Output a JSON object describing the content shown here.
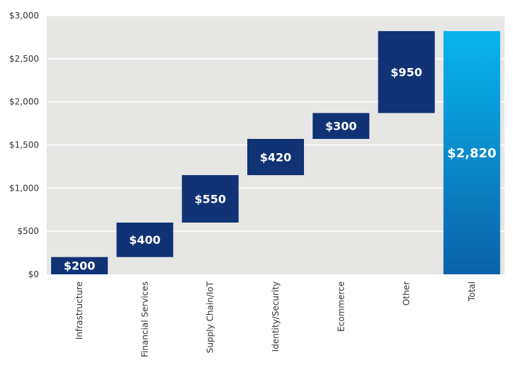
{
  "chart_data": {
    "type": "bar",
    "subtype": "waterfall",
    "categories": [
      "Infrastructure",
      "Financial Services",
      "Supply Chain/IoT",
      "Identity/Security",
      "Ecommerce",
      "Other",
      "Total"
    ],
    "values": [
      200,
      400,
      550,
      420,
      300,
      950,
      2820
    ],
    "data_labels": [
      "$200",
      "$400",
      "$550",
      "$420",
      "$300",
      "$950",
      "$2,820"
    ],
    "is_total": [
      false,
      false,
      false,
      false,
      false,
      false,
      true
    ],
    "ylim": [
      0,
      3000
    ],
    "yticks": [
      0,
      500,
      1000,
      1500,
      2000,
      2500,
      3000
    ],
    "ytick_labels": [
      "$0",
      "$500",
      "$1,000",
      "$1,500",
      "$2,000",
      "$2,500",
      "$3,000"
    ],
    "grid": true,
    "legend": "none",
    "title": "",
    "xlabel": "",
    "ylabel": ""
  },
  "colors": {
    "plot_background": "#e6e6e4",
    "gridline": "#ffffff",
    "step_bar": "#0f3374",
    "total_gradient_top": "#08b5f0",
    "total_gradient_bottom": "#0a62a8"
  }
}
